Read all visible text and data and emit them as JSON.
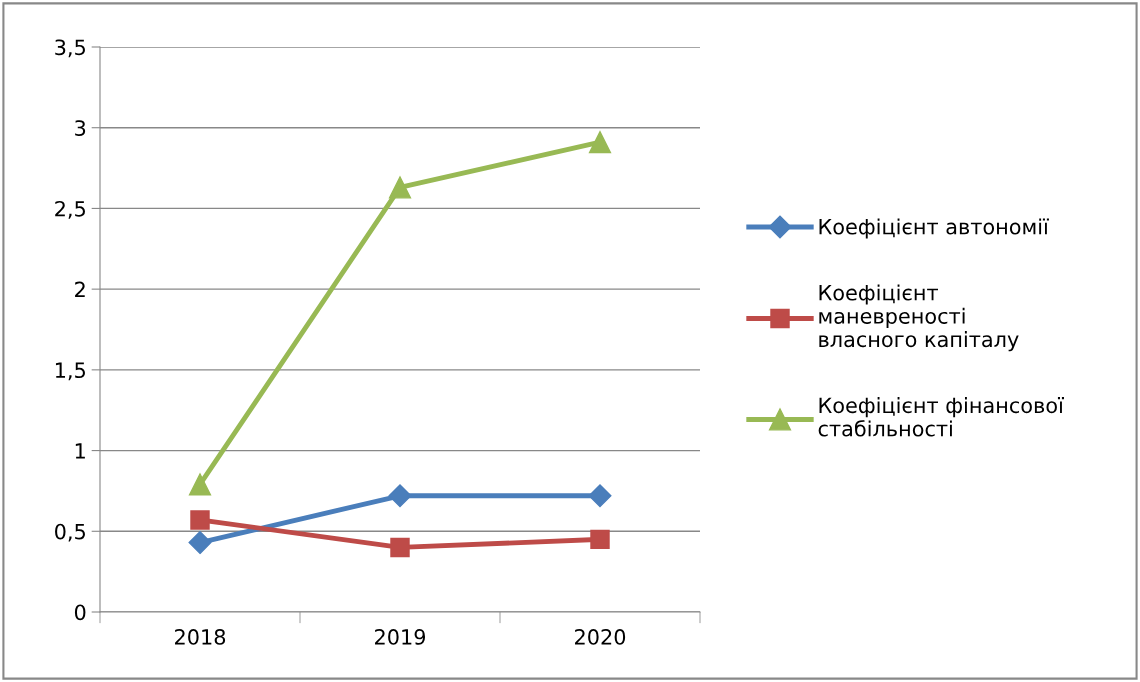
{
  "chart_data": {
    "type": "line",
    "categories": [
      "2018",
      "2019",
      "2020"
    ],
    "series": [
      {
        "name": "Коефіцієнт автономії",
        "color": "#4a7ebb",
        "marker": "diamond",
        "values": [
          0.43,
          0.72,
          0.72
        ]
      },
      {
        "name": "Коефіцієнт\nманевреності\nвласного капіталу",
        "color": "#be4b48",
        "marker": "square",
        "values": [
          0.57,
          0.4,
          0.45
        ]
      },
      {
        "name": "Коефіцієнт фінансової\nстабільності",
        "color": "#98b954",
        "marker": "triangle",
        "values": [
          0.79,
          2.63,
          2.91
        ]
      }
    ],
    "ylim": [
      0,
      3.5
    ],
    "yticks": [
      {
        "value": 0,
        "label": "0"
      },
      {
        "value": 0.5,
        "label": "0,5"
      },
      {
        "value": 1,
        "label": "1"
      },
      {
        "value": 1.5,
        "label": "1,5"
      },
      {
        "value": 2,
        "label": "2"
      },
      {
        "value": 2.5,
        "label": "2,5"
      },
      {
        "value": 3,
        "label": "3"
      },
      {
        "value": 3.5,
        "label": "3,5"
      }
    ],
    "grid": "y",
    "legend": "right",
    "line_style": "solid"
  }
}
